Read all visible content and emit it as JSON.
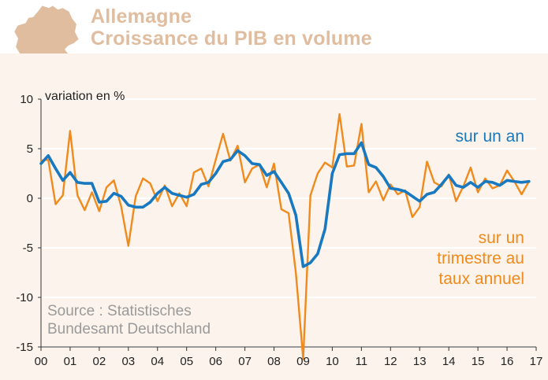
{
  "header": {
    "title_line1": "Allemagne",
    "title_line2": "Croissance du PIB en volume",
    "map_icon": "germany-map-icon"
  },
  "chart_data": {
    "type": "line",
    "title": "Allemagne — Croissance du PIB en volume",
    "ylabel": "variation en %",
    "xlabel": "",
    "ylim": [
      -15,
      10
    ],
    "xlim": [
      0,
      17
    ],
    "yticks": [
      10,
      5,
      0,
      -5,
      -10,
      -15
    ],
    "ytick_labels": [
      "10",
      "5",
      "0",
      "-5",
      "-10",
      "-15"
    ],
    "xticks": [
      0,
      1,
      2,
      3,
      4,
      5,
      6,
      7,
      8,
      9,
      10,
      11,
      12,
      13,
      14,
      15,
      16,
      17
    ],
    "xtick_labels": [
      "00",
      "01",
      "02",
      "03",
      "04",
      "05",
      "06",
      "07",
      "08",
      "09",
      "10",
      "11",
      "12",
      "13",
      "14",
      "15",
      "16",
      "17"
    ],
    "grid": true,
    "series": [
      {
        "name": "sur un trimestre au taux annuel",
        "color": "#f08a1c",
        "x_start": 0,
        "x_step": 0.25,
        "values": [
          3.8,
          3.9,
          -0.6,
          0.3,
          6.8,
          0.3,
          -1.2,
          0.6,
          -1.3,
          1.1,
          1.8,
          -0.8,
          -4.8,
          0.2,
          2.0,
          1.5,
          -0.3,
          1.3,
          -0.8,
          0.5,
          -0.8,
          2.6,
          3.0,
          1.2,
          3.9,
          6.5,
          3.8,
          5.3,
          1.6,
          3.0,
          3.4,
          1.1,
          3.5,
          -1.1,
          -1.5,
          -7.5,
          -16.2,
          0.3,
          2.5,
          3.6,
          3.1,
          8.5,
          3.2,
          3.3,
          7.5,
          0.6,
          1.7,
          -0.2,
          1.4,
          0.4,
          0.8,
          -1.9,
          -0.9,
          3.7,
          1.6,
          1.2,
          2.4,
          -0.3,
          1.2,
          3.1,
          0.6,
          2.0,
          1.0,
          1.3,
          2.8,
          1.7,
          0.4,
          1.7
        ]
      },
      {
        "name": "sur un an",
        "color": "#1878c0",
        "x_start": 0,
        "x_step": 0.25,
        "values": [
          3.5,
          4.3,
          3.0,
          1.8,
          2.6,
          1.6,
          1.5,
          1.5,
          -0.4,
          -0.3,
          0.5,
          0.2,
          -0.7,
          -0.9,
          -0.9,
          -0.4,
          0.5,
          1.1,
          0.5,
          0.3,
          0.1,
          0.4,
          1.4,
          1.6,
          2.5,
          3.7,
          3.9,
          4.8,
          4.3,
          3.5,
          3.4,
          2.3,
          2.7,
          1.6,
          0.5,
          -1.7,
          -6.9,
          -6.5,
          -5.6,
          -3.1,
          2.5,
          4.4,
          4.5,
          4.5,
          5.6,
          3.4,
          3.1,
          2.2,
          1.0,
          0.9,
          0.7,
          0.2,
          -0.3,
          0.4,
          0.6,
          1.4,
          2.3,
          1.3,
          1.1,
          1.6,
          1.1,
          1.7,
          1.6,
          1.3,
          1.8,
          1.7,
          1.6,
          1.7
        ]
      }
    ],
    "annotations": {
      "blue_line1": "sur un an",
      "orange_line1": "sur un",
      "orange_line2": "trimestre au",
      "orange_line3": "taux annuel",
      "source_line1": "Source : Statistisches",
      "source_line2": "Bundesamt Deutschland"
    }
  }
}
